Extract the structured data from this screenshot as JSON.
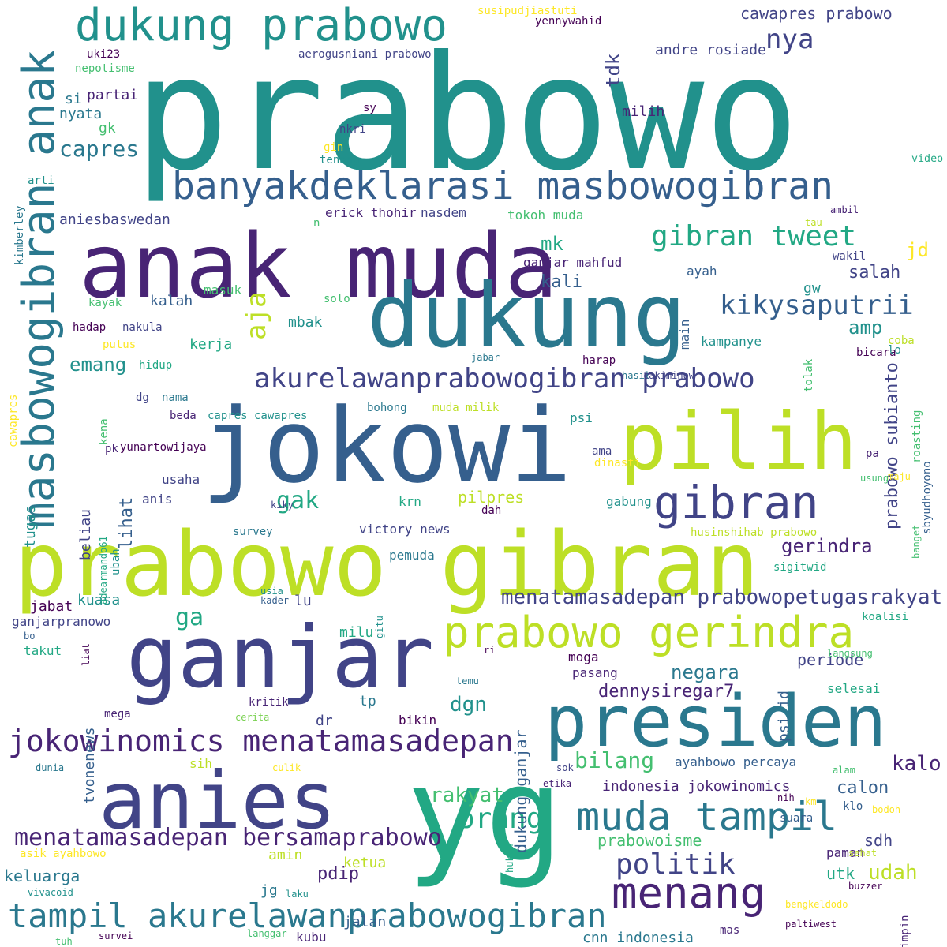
{
  "cloud": {
    "words": [
      "prabowo",
      "anak muda",
      "dukung",
      "jokowi",
      "pilih",
      "prabowo gibran",
      "ganjar",
      "anies",
      "yg",
      "presiden",
      "dukung prabowo",
      "banyakdeklarasi masbowogibran",
      "masbowogibran anak",
      "gibran",
      "prabowo gerindra",
      "menang",
      "muda tampil",
      "tampil akurelawanprabowogibran",
      "jokowinomics menatamasadepan",
      "akurelawanprabowogibran prabowo",
      "gibran tweet",
      "kikysaputrii",
      "menatamasadepan bersamaprabowo",
      "menatamasadepan prabowopetugasrakyat",
      "capres",
      "orang",
      "politik",
      "aja",
      "gak",
      "nya",
      "cawapres prabowo",
      "prabowo subianto",
      "negara",
      "bilang",
      "dennysiregar7",
      "emang",
      "ga",
      "rakyat",
      "dgn",
      "kalo",
      "udah",
      "mk",
      "jd",
      "amp",
      "gerindra",
      "tdk",
      "dukung ganjar",
      "indonesia jokowinomics",
      "calon",
      "prabowoisme",
      "pdip",
      "kali",
      "salah",
      "lihat",
      "andre rosiade",
      "periode",
      "sdh",
      "kuasa",
      "keluarga",
      "tvonenews",
      "cnn indonesia",
      "ayahbowo percaya",
      "utk",
      "ketua",
      "amin",
      "pilpres",
      "milih",
      "mbak",
      "kerja",
      "gk",
      "partai",
      "nyata",
      "si",
      "lu",
      "milu",
      "kalah",
      "pasang",
      "moga",
      "paman",
      "jalan",
      "kubu",
      "jabat",
      "aniesbaswedan",
      "erick thohir",
      "nasdem",
      "tokoh muda",
      "ganjar mahfud",
      "tugas",
      "beliau",
      "ayah",
      "main",
      "kampanye",
      "usaha",
      "anis",
      "krn",
      "gabung",
      "victory news",
      "pemuda",
      "ganjarpranowo",
      "takut",
      "kritik",
      "bikin",
      "selesai",
      "psi id",
      "sih",
      "dr",
      "tp",
      "jg",
      "gw",
      "masuk",
      "solo",
      "kayak",
      "hadap",
      "nakula",
      "hidup",
      "dg",
      "nama",
      "beda",
      "capres cawapres",
      "bohong",
      "muda milik",
      "psi",
      "pk",
      "yunartowijaya",
      "susipudjiastuti",
      "yennywahid",
      "uki23",
      "aerogusniani prabowo",
      "nepotisme",
      "nkri",
      "sy",
      "gin",
      "tenang",
      "arti",
      "kimberley",
      "video",
      "n",
      "ambil",
      "tau",
      "wakil",
      "putus",
      "jabar",
      "harap",
      "tolak",
      "coba",
      "bicara",
      "lo",
      "roasting",
      "hasil",
      "cakiminow",
      "kena",
      "cawapres",
      "sbyudhoyono",
      "ama",
      "dinasti",
      "pa",
      "usung",
      "maju",
      "banget",
      "kiky",
      "dah",
      "survey",
      "husinshihab prabowo",
      "sigitwid",
      "ubah",
      "adearmando61",
      "gitu",
      "usia",
      "kader",
      "koalisi",
      "bo",
      "liat",
      "ri",
      "langsung",
      "temu",
      "mega",
      "cerita",
      "dunia",
      "culik",
      "sok",
      "etika",
      "alam",
      "klo",
      "km",
      "suara",
      "nih",
      "hukum",
      "bodoh",
      "sehat",
      "asik ayahbowo",
      "vivacoid",
      "laku",
      "buzzer",
      "bengkeldodo",
      "pimpin",
      "mas",
      "paltiwest",
      "survei",
      "langgar",
      "tuh"
    ],
    "colors": {
      "purple": "#440154",
      "violet": "#482475",
      "indigo": "#414487",
      "navy": "#355f8d",
      "steel": "#2a788e",
      "teal": "#21918c",
      "seagreen": "#22a884",
      "green": "#44bf70",
      "lime": "#7ad151",
      "chartreuse": "#bddf26",
      "yellow": "#fde725"
    }
  }
}
